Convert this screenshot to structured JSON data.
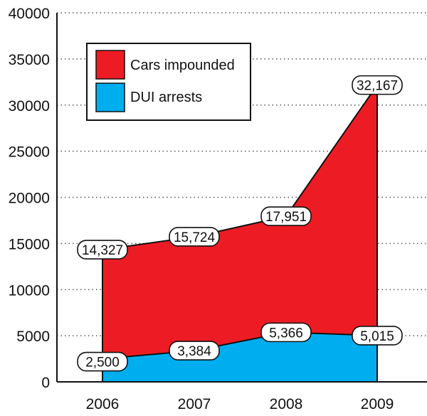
{
  "chart_data": {
    "type": "area",
    "categories": [
      "2006",
      "2007",
      "2008",
      "2009"
    ],
    "series": [
      {
        "name": "Cars impounded",
        "values": [
          14327,
          15724,
          17951,
          32167
        ],
        "labels": [
          "14,327",
          "15,724",
          "17,951",
          "32,167"
        ],
        "color": "#ed1c24"
      },
      {
        "name": "DUI arrests",
        "values": [
          2500,
          3384,
          5366,
          5015
        ],
        "labels": [
          "2,500",
          "3,384",
          "5,366",
          "5,015"
        ],
        "color": "#00aeef"
      }
    ],
    "y_ticks": [
      "0",
      "5000",
      "10000",
      "15000",
      "20000",
      "25000",
      "30000",
      "35000",
      "40000"
    ],
    "ylim": [
      0,
      40000
    ],
    "grid": "dotted-horizontal",
    "legend_position": "top-left"
  }
}
